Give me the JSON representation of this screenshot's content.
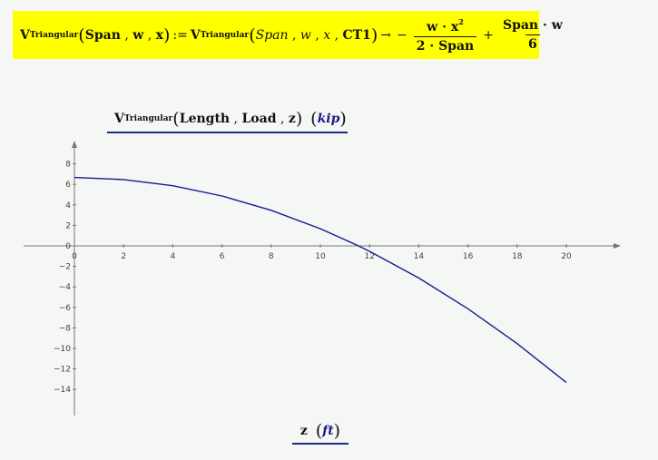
{
  "formula": {
    "func": "V",
    "func_sub": "Triangular",
    "args_left": [
      "Span",
      "w",
      "x"
    ],
    "assign": ":=",
    "args_right": [
      "Span",
      "w",
      "x",
      "CT1"
    ],
    "arrow": "→",
    "minus": "−",
    "term1_num": "w · x",
    "term1_num_sup": "2",
    "term1_den": "2 · Span",
    "plus": "+",
    "term2_num": "Span · w",
    "term2_den": "6"
  },
  "y_label": {
    "func": "V",
    "func_sub": "Triangular",
    "args": [
      "Length",
      "Load",
      "z"
    ],
    "unit": "kip"
  },
  "x_label": {
    "var": "z",
    "unit": "ft"
  },
  "chart_data": {
    "type": "line",
    "title": "",
    "xlabel": "z (ft)",
    "ylabel": "V_Triangular(Length, Load, z) (kip)",
    "xlim": [
      -2,
      22
    ],
    "ylim": [
      -16,
      10
    ],
    "x_ticks": [
      0,
      2,
      4,
      6,
      8,
      10,
      12,
      14,
      16,
      18,
      20
    ],
    "y_ticks": [
      8,
      6,
      4,
      2,
      0,
      -2,
      -4,
      -6,
      -8,
      -10,
      -12,
      -14
    ],
    "x_tick_labels": [
      "0",
      "2",
      "4",
      "6",
      "8",
      "10",
      "12",
      "14",
      "16",
      "18",
      "20"
    ],
    "y_tick_labels": [
      "8",
      "6",
      "4",
      "2",
      "0",
      "−2",
      "−4",
      "−6",
      "−8",
      "−10",
      "−12",
      "−14"
    ],
    "grid": false,
    "series": [
      {
        "color": "#1a1a8c",
        "x": [
          0,
          2,
          4,
          6,
          8,
          10,
          11.55,
          12,
          14,
          16,
          18,
          20
        ],
        "y": [
          6.67,
          6.47,
          5.87,
          4.87,
          3.47,
          1.67,
          0.0,
          -0.53,
          -3.13,
          -6.13,
          -9.53,
          -13.33
        ]
      }
    ]
  }
}
